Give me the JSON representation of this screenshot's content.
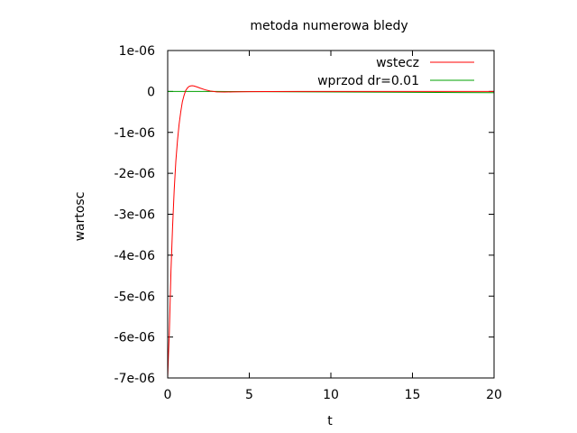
{
  "chart_data": {
    "type": "line",
    "title": "metoda numerowa bledy",
    "xlabel": "t",
    "ylabel": "wartosc",
    "xlim": [
      0,
      20
    ],
    "ylim": [
      -7e-06,
      1e-06
    ],
    "xticks": [
      0,
      5,
      10,
      15,
      20
    ],
    "xtick_labels": [
      "0",
      "5",
      "10",
      "15",
      "20"
    ],
    "yticks": [
      1e-06,
      0,
      -1e-06,
      -2e-06,
      -3e-06,
      -4e-06,
      -5e-06,
      -6e-06,
      -7e-06
    ],
    "ytick_labels": [
      "1e-06",
      "0",
      "-1e-06",
      "-2e-06",
      "-3e-06",
      "-4e-06",
      "-5e-06",
      "-6e-06",
      "-7e-06"
    ],
    "grid": false,
    "legend_position": "top-right",
    "series": [
      {
        "name": "wstecz",
        "color": "#ff0000",
        "x": [
          0,
          0.05,
          0.1,
          0.2,
          0.3,
          0.4,
          0.5,
          0.6,
          0.7,
          0.8,
          0.9,
          1.0,
          1.1,
          1.2,
          1.3,
          1.4,
          1.5,
          1.6,
          1.8,
          2.0,
          2.3,
          2.6,
          3.0,
          3.5,
          4.0,
          5.0,
          6.0,
          8.0,
          10.0,
          12.0,
          15.0,
          20.0
        ],
        "y": [
          -7e-06,
          -6.4e-06,
          -5.9e-06,
          -4.4e-06,
          -3.3e-06,
          -2.4e-06,
          -1.7e-06,
          -1.2e-06,
          -8e-07,
          -5e-07,
          -2.5e-07,
          -1e-07,
          2e-08,
          8e-08,
          1.2e-07,
          1.35e-07,
          1.4e-07,
          1.35e-07,
          1.1e-07,
          8e-08,
          4e-08,
          1e-08,
          -1e-08,
          -1.5e-08,
          -1e-08,
          -5e-09,
          -3e-09,
          -1e-09,
          0,
          0,
          0,
          0
        ]
      },
      {
        "name": "wprzod dr=0.01",
        "color": "#00a000",
        "x": [
          0,
          3,
          14,
          20
        ],
        "y": [
          0,
          0,
          -2e-08,
          -3e-08
        ]
      }
    ]
  }
}
